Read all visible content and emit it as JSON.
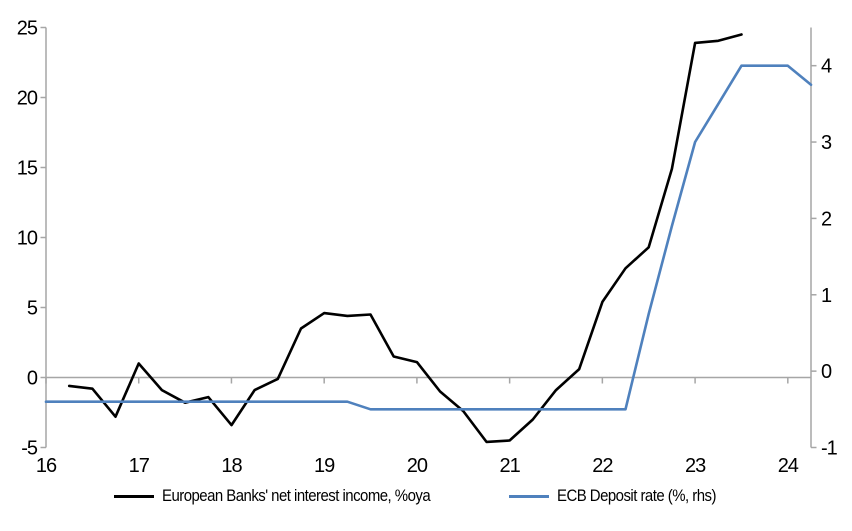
{
  "chart_data": {
    "type": "line",
    "title": "",
    "x_axis": {
      "ticks": [
        16,
        17,
        18,
        19,
        20,
        21,
        22,
        23,
        24
      ],
      "range": [
        16,
        24.25
      ],
      "tick_style": "ticks-on-zero-line-labels-low"
    },
    "y_axis_left": {
      "ticks": [
        -5,
        0,
        5,
        10,
        15,
        20,
        25
      ],
      "range": [
        -5,
        25
      ]
    },
    "y_axis_right": {
      "ticks": [
        -1,
        0,
        1,
        2,
        3,
        4
      ],
      "range": [
        -1,
        4.5
      ]
    },
    "grid": "zero-line-only",
    "legend_position": "bottom-center",
    "series": [
      {
        "name": "European Banks' net interest income, %oya",
        "axis": "left",
        "color": "#000000",
        "x": [
          16.25,
          16.5,
          16.75,
          17.0,
          17.25,
          17.5,
          17.75,
          18.0,
          18.25,
          18.5,
          18.75,
          19.0,
          19.25,
          19.5,
          19.75,
          20.0,
          20.25,
          20.5,
          20.75,
          21.0,
          21.25,
          21.5,
          21.75,
          22.0,
          22.25,
          22.5,
          22.75,
          23.0,
          23.25,
          23.5
        ],
        "values": [
          -0.6,
          -0.8,
          -2.8,
          1.0,
          -0.9,
          -1.8,
          -1.4,
          -3.4,
          -0.9,
          -0.1,
          3.5,
          4.6,
          4.4,
          4.5,
          1.5,
          1.1,
          -1.0,
          -2.4,
          -4.6,
          -4.5,
          -3.0,
          -0.9,
          0.6,
          5.4,
          7.8,
          9.3,
          14.9,
          23.9,
          24.05,
          24.5
        ]
      },
      {
        "name": "ECB Deposit rate (%, rhs)",
        "axis": "right",
        "color": "#4f81bd",
        "x": [
          16.0,
          16.25,
          16.5,
          16.75,
          17.0,
          17.25,
          17.5,
          17.75,
          18.0,
          18.25,
          18.5,
          18.75,
          19.0,
          19.25,
          19.5,
          19.75,
          20.0,
          20.25,
          20.5,
          20.75,
          21.0,
          21.25,
          21.5,
          21.75,
          22.0,
          22.25,
          22.5,
          22.75,
          23.0,
          23.25,
          23.5,
          23.75,
          24.0,
          24.25
        ],
        "values": [
          -0.4,
          -0.4,
          -0.4,
          -0.4,
          -0.4,
          -0.4,
          -0.4,
          -0.4,
          -0.4,
          -0.4,
          -0.4,
          -0.4,
          -0.4,
          -0.4,
          -0.5,
          -0.5,
          -0.5,
          -0.5,
          -0.5,
          -0.5,
          -0.5,
          -0.5,
          -0.5,
          -0.5,
          -0.5,
          -0.5,
          0.75,
          1.9,
          3.0,
          3.5,
          4.0,
          4.0,
          4.0,
          3.75
        ]
      }
    ],
    "style": {
      "axis_color": "#a6a6a6",
      "background": "#ffffff",
      "series_stroke_width": 2.6,
      "axis_stroke_width": 1.5
    }
  }
}
